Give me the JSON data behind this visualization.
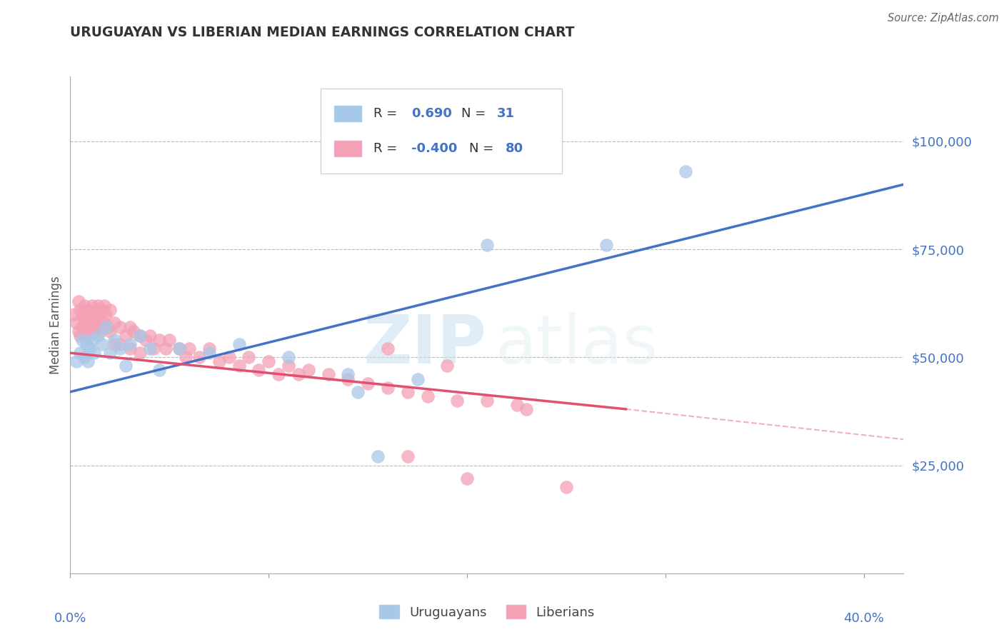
{
  "title": "URUGUAYAN VS LIBERIAN MEDIAN EARNINGS CORRELATION CHART",
  "source": "Source: ZipAtlas.com",
  "ylabel": "Median Earnings",
  "watermark_zip": "ZIP",
  "watermark_atlas": "atlas",
  "legend": {
    "uruguayan_R": "0.690",
    "uruguayan_N": "31",
    "liberian_R": "-0.400",
    "liberian_N": "80"
  },
  "yticks": [
    0,
    25000,
    50000,
    75000,
    100000
  ],
  "ytick_labels": [
    "",
    "$25,000",
    "$50,000",
    "$75,000",
    "$100,000"
  ],
  "xtick_positions": [
    0.0,
    0.1,
    0.2,
    0.3,
    0.4
  ],
  "xlim": [
    0.0,
    0.42
  ],
  "ylim": [
    0,
    115000
  ],
  "blue_color": "#a8c8e8",
  "pink_color": "#f4a0b5",
  "blue_line_color": "#4472c4",
  "pink_line_color": "#e05070",
  "blue_scatter": [
    [
      0.003,
      49000
    ],
    [
      0.005,
      51000
    ],
    [
      0.006,
      54000
    ],
    [
      0.007,
      50000
    ],
    [
      0.008,
      53000
    ],
    [
      0.009,
      49000
    ],
    [
      0.01,
      52000
    ],
    [
      0.011,
      54000
    ],
    [
      0.012,
      51000
    ],
    [
      0.014,
      55000
    ],
    [
      0.016,
      53000
    ],
    [
      0.018,
      57000
    ],
    [
      0.02,
      51000
    ],
    [
      0.022,
      54000
    ],
    [
      0.025,
      52000
    ],
    [
      0.028,
      48000
    ],
    [
      0.03,
      53000
    ],
    [
      0.035,
      55000
    ],
    [
      0.04,
      52000
    ],
    [
      0.045,
      47000
    ],
    [
      0.055,
      52000
    ],
    [
      0.07,
      51000
    ],
    [
      0.085,
      53000
    ],
    [
      0.11,
      50000
    ],
    [
      0.14,
      46000
    ],
    [
      0.155,
      27000
    ],
    [
      0.175,
      45000
    ],
    [
      0.21,
      76000
    ],
    [
      0.27,
      76000
    ],
    [
      0.31,
      93000
    ],
    [
      0.145,
      42000
    ]
  ],
  "pink_scatter": [
    [
      0.002,
      60000
    ],
    [
      0.003,
      58000
    ],
    [
      0.004,
      63000
    ],
    [
      0.004,
      56000
    ],
    [
      0.005,
      61000
    ],
    [
      0.005,
      55000
    ],
    [
      0.006,
      60000
    ],
    [
      0.006,
      57000
    ],
    [
      0.007,
      62000
    ],
    [
      0.007,
      58000
    ],
    [
      0.008,
      59000
    ],
    [
      0.008,
      55000
    ],
    [
      0.009,
      61000
    ],
    [
      0.009,
      57000
    ],
    [
      0.01,
      60000
    ],
    [
      0.01,
      56000
    ],
    [
      0.011,
      62000
    ],
    [
      0.011,
      58000
    ],
    [
      0.012,
      60000
    ],
    [
      0.012,
      56000
    ],
    [
      0.013,
      61000
    ],
    [
      0.013,
      57000
    ],
    [
      0.014,
      62000
    ],
    [
      0.014,
      58000
    ],
    [
      0.015,
      60000
    ],
    [
      0.015,
      56000
    ],
    [
      0.016,
      61000
    ],
    [
      0.016,
      57000
    ],
    [
      0.017,
      62000
    ],
    [
      0.017,
      58000
    ],
    [
      0.018,
      60000
    ],
    [
      0.019,
      57000
    ],
    [
      0.02,
      61000
    ],
    [
      0.02,
      56000
    ],
    [
      0.022,
      58000
    ],
    [
      0.022,
      53000
    ],
    [
      0.025,
      57000
    ],
    [
      0.025,
      53000
    ],
    [
      0.028,
      55000
    ],
    [
      0.03,
      57000
    ],
    [
      0.03,
      52000
    ],
    [
      0.032,
      56000
    ],
    [
      0.035,
      55000
    ],
    [
      0.035,
      51000
    ],
    [
      0.038,
      54000
    ],
    [
      0.04,
      55000
    ],
    [
      0.042,
      52000
    ],
    [
      0.045,
      54000
    ],
    [
      0.048,
      52000
    ],
    [
      0.05,
      54000
    ],
    [
      0.055,
      52000
    ],
    [
      0.058,
      50000
    ],
    [
      0.06,
      52000
    ],
    [
      0.065,
      50000
    ],
    [
      0.07,
      52000
    ],
    [
      0.075,
      49000
    ],
    [
      0.08,
      50000
    ],
    [
      0.085,
      48000
    ],
    [
      0.09,
      50000
    ],
    [
      0.095,
      47000
    ],
    [
      0.1,
      49000
    ],
    [
      0.105,
      46000
    ],
    [
      0.11,
      48000
    ],
    [
      0.115,
      46000
    ],
    [
      0.12,
      47000
    ],
    [
      0.13,
      46000
    ],
    [
      0.14,
      45000
    ],
    [
      0.15,
      44000
    ],
    [
      0.16,
      43000
    ],
    [
      0.17,
      42000
    ],
    [
      0.18,
      41000
    ],
    [
      0.195,
      40000
    ],
    [
      0.21,
      40000
    ],
    [
      0.225,
      39000
    ],
    [
      0.17,
      27000
    ],
    [
      0.2,
      22000
    ],
    [
      0.16,
      52000
    ],
    [
      0.23,
      38000
    ],
    [
      0.25,
      20000
    ],
    [
      0.19,
      48000
    ]
  ],
  "blue_line": {
    "x0": 0.0,
    "y0": 42000,
    "x1": 0.42,
    "y1": 90000
  },
  "pink_line_solid": {
    "x0": 0.0,
    "y0": 51000,
    "x1": 0.28,
    "y1": 38000
  },
  "pink_line_dashed": {
    "x0": 0.28,
    "y0": 38000,
    "x1": 0.42,
    "y1": 31000
  },
  "background_color": "#ffffff",
  "grid_color": "#bbbbbb",
  "title_color": "#333333",
  "blue_label_color": "#4472c4",
  "tick_color": "#4472c4"
}
